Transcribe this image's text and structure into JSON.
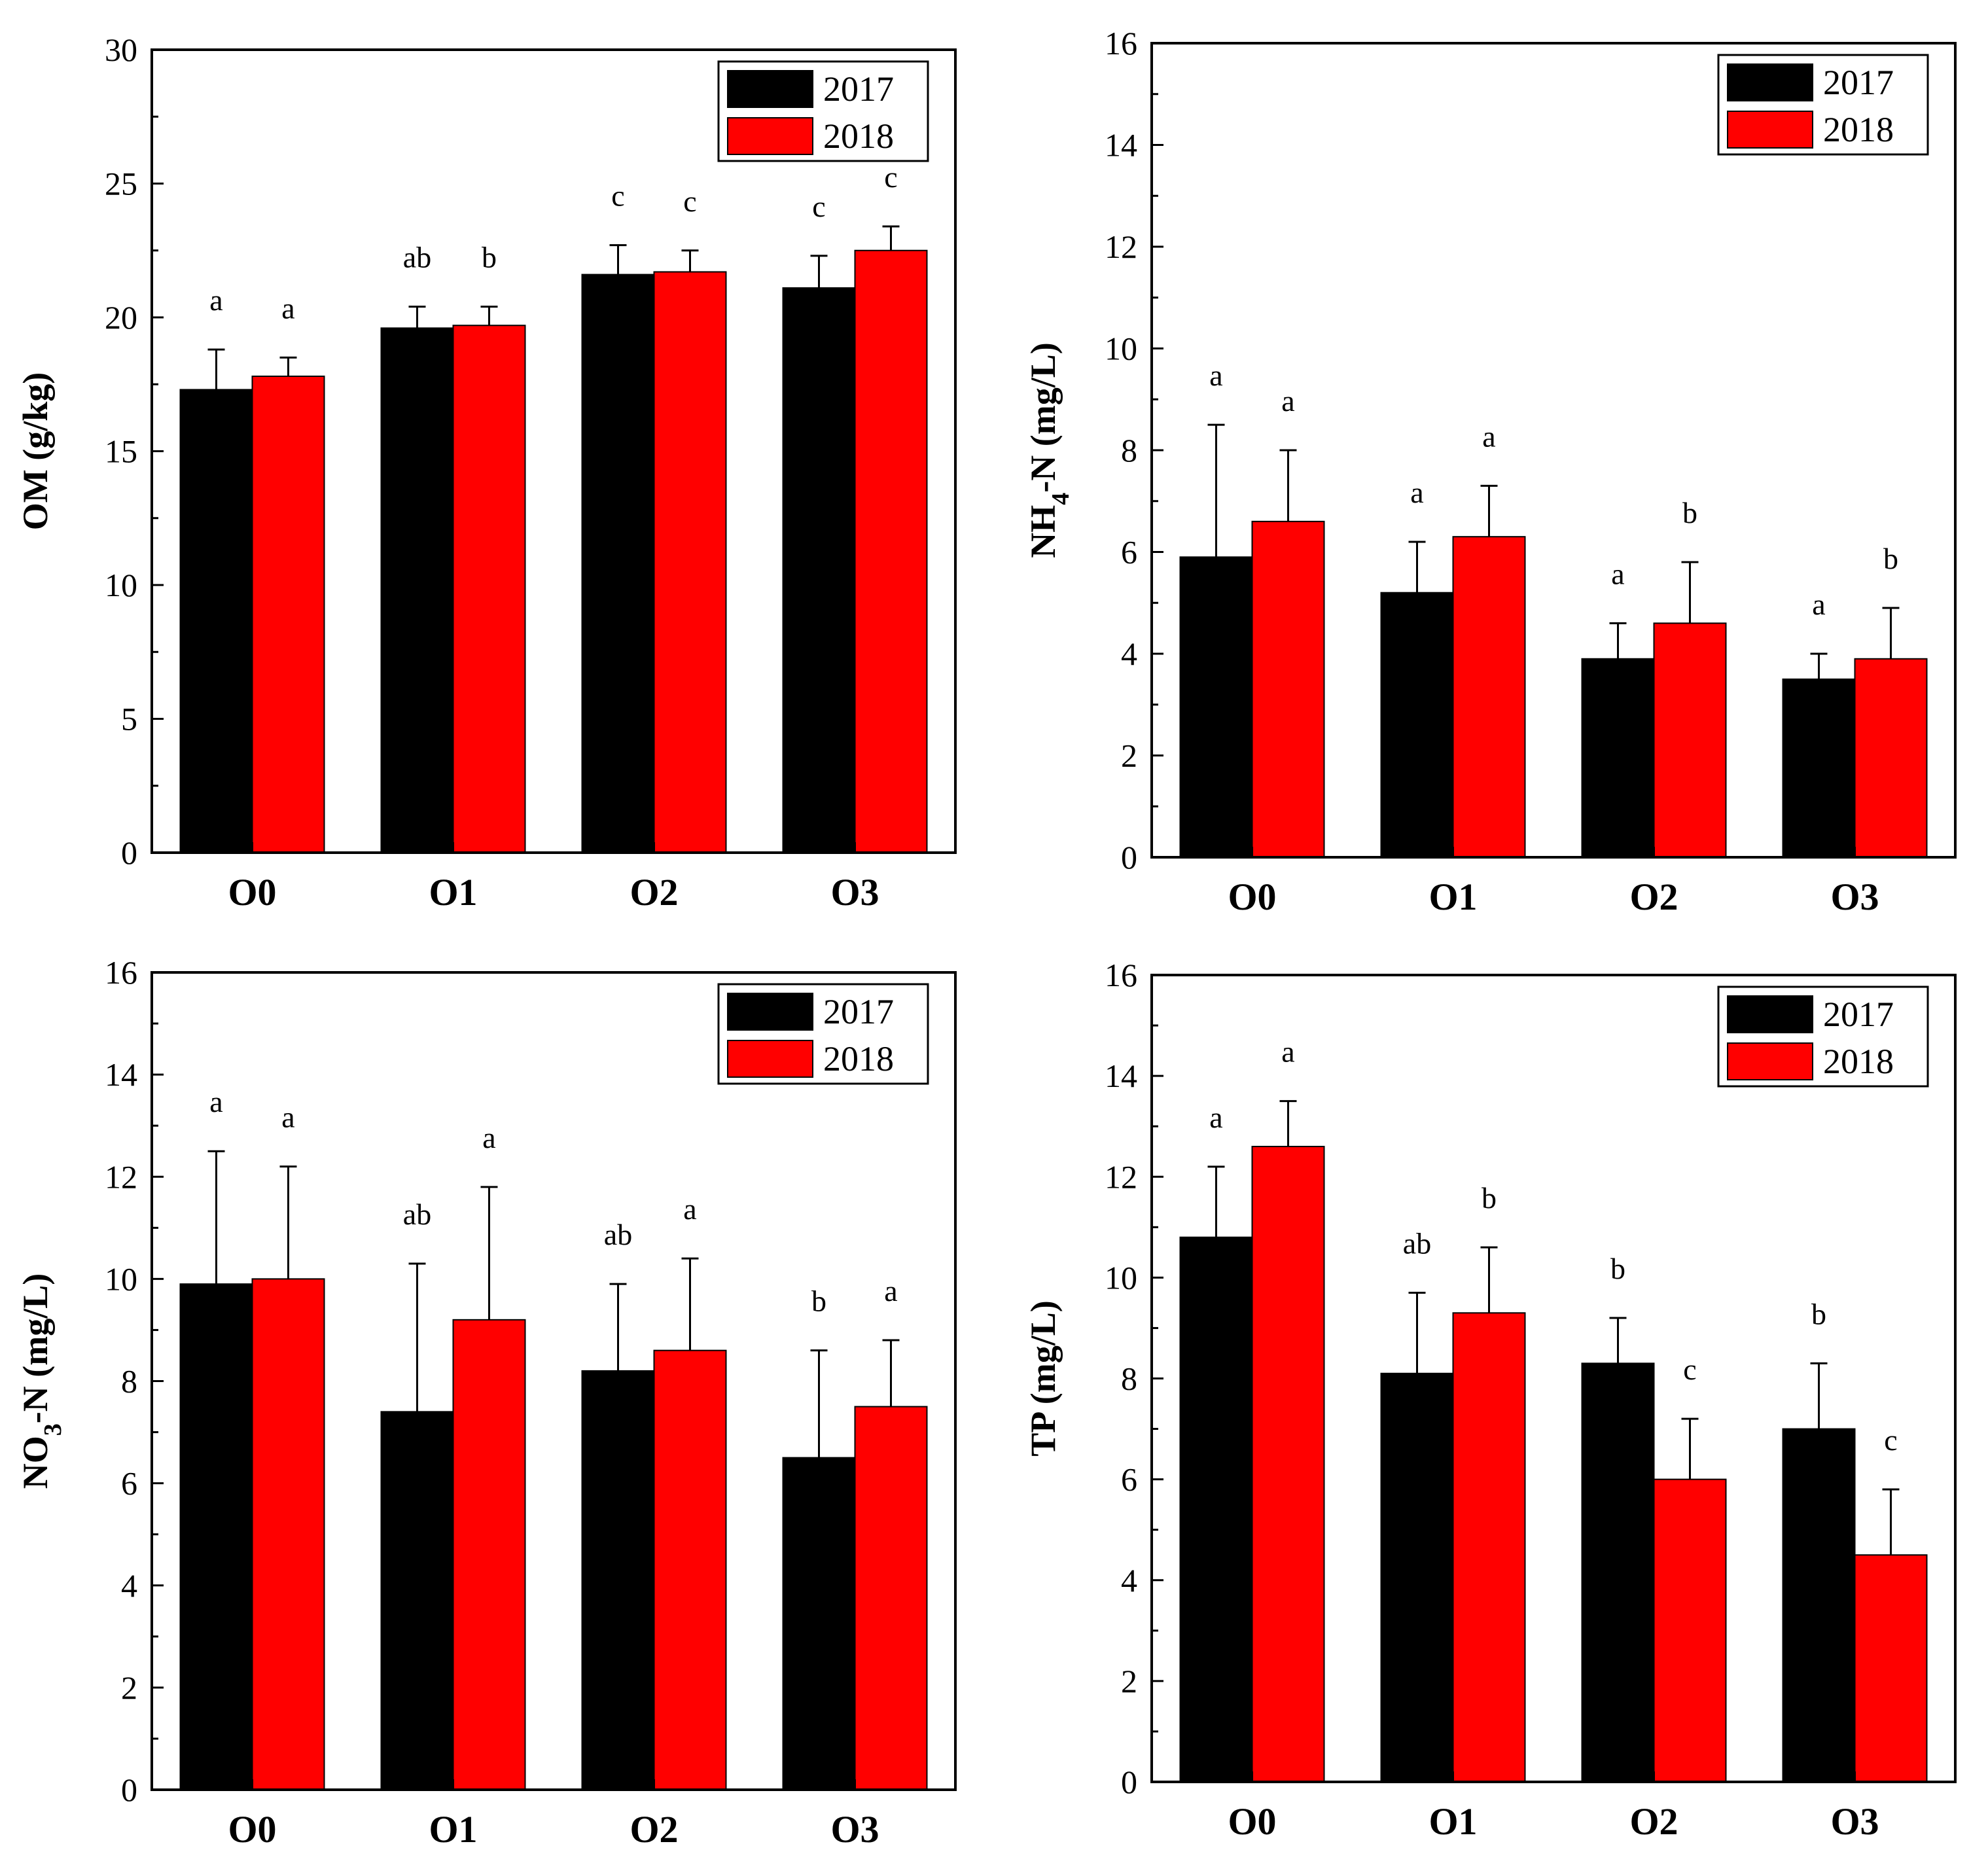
{
  "chart_data": [
    {
      "type": "bar",
      "categories": [
        "O0",
        "O1",
        "O2",
        "O3"
      ],
      "ylabel_parts": [
        {
          "text": "OM (g/kg)",
          "sub": false
        }
      ],
      "ylim": [
        0,
        30
      ],
      "yticks": [
        "0",
        "5",
        "10",
        "15",
        "20",
        "25",
        "30"
      ],
      "ytick_values": [
        0,
        5,
        10,
        15,
        20,
        25,
        30
      ],
      "legend": [
        "2017",
        "2018"
      ],
      "legend_position": "top-right",
      "series": [
        {
          "name": "2017",
          "color": "#000000",
          "values": [
            17.3,
            19.6,
            21.6,
            21.1
          ],
          "errors": [
            1.5,
            0.8,
            1.1,
            1.2
          ],
          "labels": [
            "a",
            "ab",
            "c",
            "c"
          ]
        },
        {
          "name": "2018",
          "color": "#ff0000",
          "values": [
            17.8,
            19.7,
            21.7,
            22.5
          ],
          "errors": [
            0.7,
            0.7,
            0.8,
            0.9
          ],
          "labels": [
            "a",
            "b",
            "c",
            "c"
          ]
        }
      ]
    },
    {
      "type": "bar",
      "categories": [
        "O0",
        "O1",
        "O2",
        "O3"
      ],
      "ylabel_parts": [
        {
          "text": "NH",
          "sub": false
        },
        {
          "text": "4",
          "sub": true
        },
        {
          "text": "-N (mg/L)",
          "sub": false
        }
      ],
      "ylim": [
        0,
        16
      ],
      "yticks": [
        "0",
        "2",
        "4",
        "6",
        "8",
        "10",
        "12",
        "14",
        "16"
      ],
      "ytick_values": [
        0,
        2,
        4,
        6,
        8,
        10,
        12,
        14,
        16
      ],
      "legend": [
        "2017",
        "2018"
      ],
      "legend_position": "top-right",
      "series": [
        {
          "name": "2017",
          "color": "#000000",
          "values": [
            5.9,
            5.2,
            3.9,
            3.5
          ],
          "errors": [
            2.6,
            1.0,
            0.7,
            0.5
          ],
          "labels": [
            "a",
            "a",
            "a",
            "a"
          ]
        },
        {
          "name": "2018",
          "color": "#ff0000",
          "values": [
            6.6,
            6.3,
            4.6,
            3.9
          ],
          "errors": [
            1.4,
            1.0,
            1.2,
            1.0
          ],
          "labels": [
            "a",
            "a",
            "b",
            "b"
          ]
        }
      ]
    },
    {
      "type": "bar",
      "categories": [
        "O0",
        "O1",
        "O2",
        "O3"
      ],
      "ylabel_parts": [
        {
          "text": "NO",
          "sub": false
        },
        {
          "text": "3",
          "sub": true
        },
        {
          "text": "-N (mg/L)",
          "sub": false
        }
      ],
      "ylim": [
        0,
        16
      ],
      "yticks": [
        "0",
        "2",
        "4",
        "6",
        "8",
        "10",
        "12",
        "14",
        "16"
      ],
      "ytick_values": [
        0,
        2,
        4,
        6,
        8,
        10,
        12,
        14,
        16
      ],
      "legend": [
        "2017",
        "2018"
      ],
      "legend_position": "top-right",
      "series": [
        {
          "name": "2017",
          "color": "#000000",
          "values": [
            9.9,
            7.4,
            8.2,
            6.5
          ],
          "errors": [
            2.6,
            2.9,
            1.7,
            2.1
          ],
          "labels": [
            "a",
            "ab",
            "ab",
            "b"
          ]
        },
        {
          "name": "2018",
          "color": "#ff0000",
          "values": [
            10.0,
            9.2,
            8.6,
            7.5
          ],
          "errors": [
            2.2,
            2.6,
            1.8,
            1.3
          ],
          "labels": [
            "a",
            "a",
            "a",
            "a"
          ]
        }
      ]
    },
    {
      "type": "bar",
      "categories": [
        "O0",
        "O1",
        "O2",
        "O3"
      ],
      "ylabel_parts": [
        {
          "text": "TP (mg/L)",
          "sub": false
        }
      ],
      "ylim": [
        0,
        16
      ],
      "yticks": [
        "0",
        "2",
        "4",
        "6",
        "8",
        "10",
        "12",
        "14",
        "16"
      ],
      "ytick_values": [
        0,
        2,
        4,
        6,
        8,
        10,
        12,
        14,
        16
      ],
      "legend": [
        "2017",
        "2018"
      ],
      "legend_position": "top-right",
      "series": [
        {
          "name": "2017",
          "color": "#000000",
          "values": [
            10.8,
            8.1,
            8.3,
            7.0
          ],
          "errors": [
            1.4,
            1.6,
            0.9,
            1.3
          ],
          "labels": [
            "a",
            "ab",
            "b",
            "b"
          ]
        },
        {
          "name": "2018",
          "color": "#ff0000",
          "values": [
            12.6,
            9.3,
            6.0,
            4.5
          ],
          "errors": [
            0.9,
            1.3,
            1.2,
            1.3
          ],
          "labels": [
            "a",
            "b",
            "c",
            "c"
          ]
        }
      ]
    }
  ]
}
